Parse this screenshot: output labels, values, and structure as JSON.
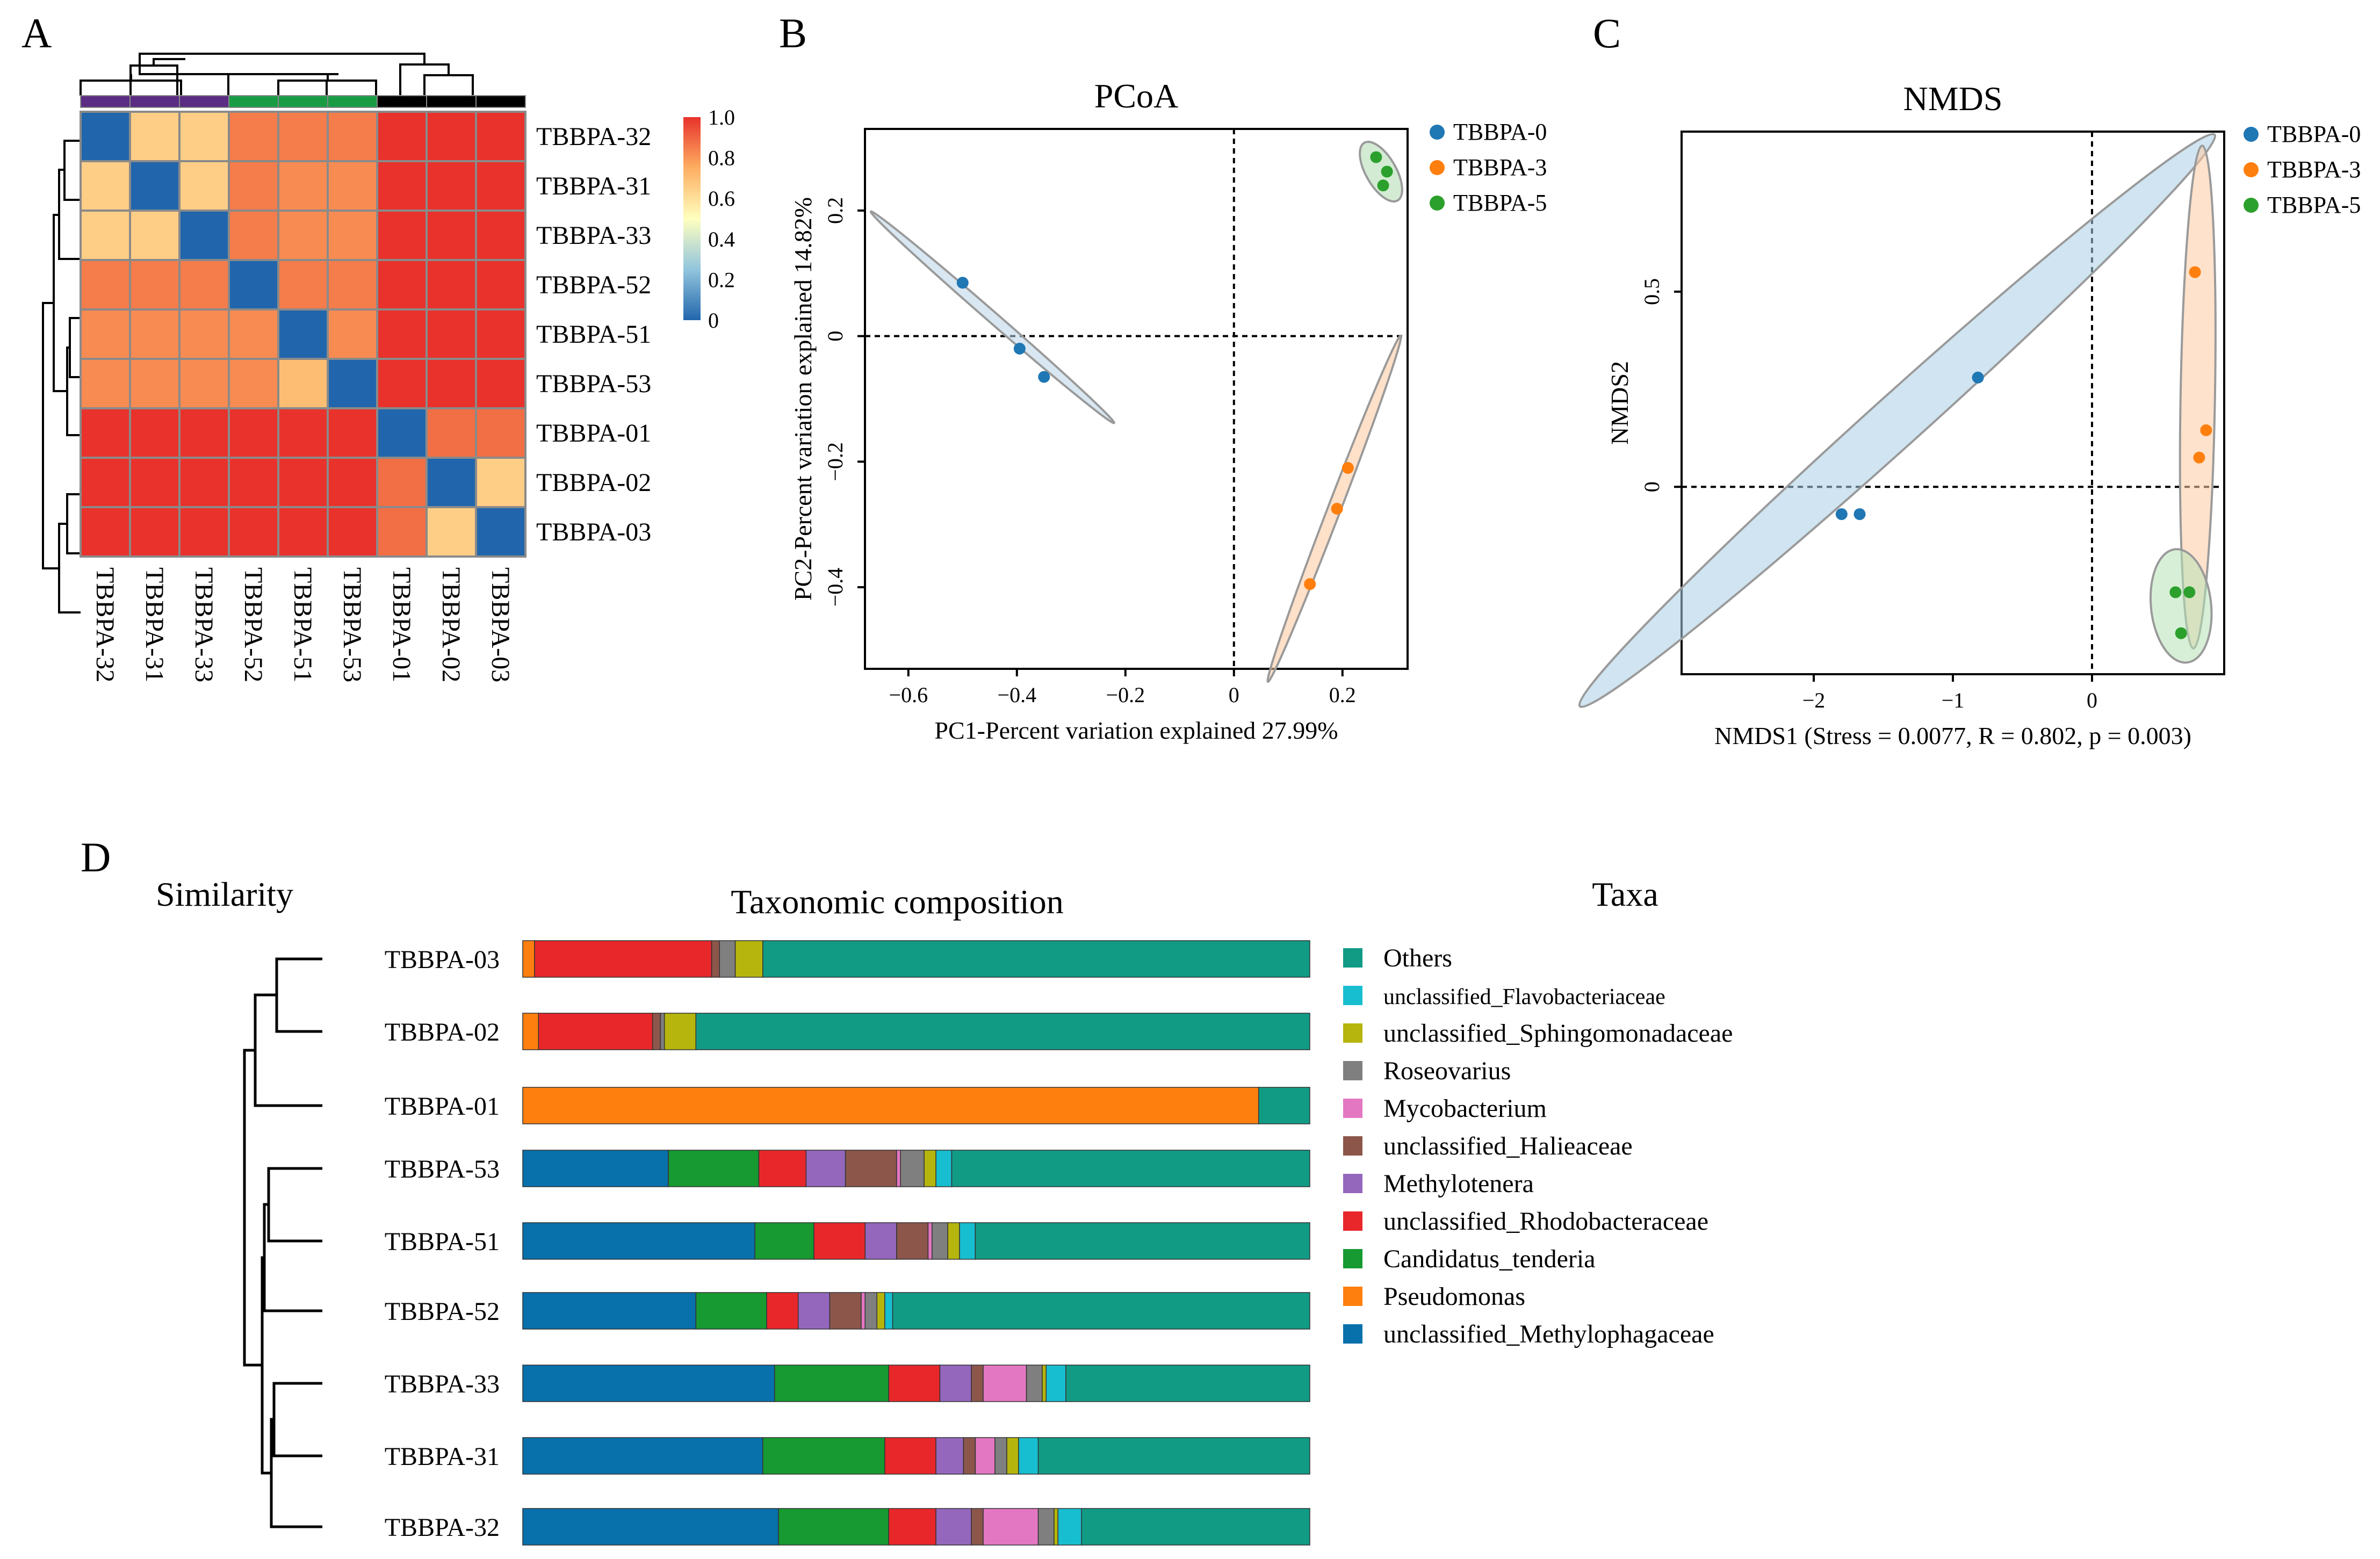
{
  "colors": {
    "tbbpa0": "#1f77b4",
    "tbbpa3": "#ff7f0e",
    "tbbpa5": "#2ca02c",
    "heat_low": "#2166ac",
    "heat_mid": "#ffffbf",
    "heat_high": "#e8322b",
    "group_purple": "#5b2c83",
    "group_green": "#1a9c45",
    "group_black": "#000000"
  },
  "panels": {
    "A": {
      "letter": "A"
    },
    "B": {
      "letter": "B"
    },
    "C": {
      "letter": "C"
    },
    "D": {
      "letter": "D"
    }
  },
  "chart_data": [
    {
      "id": "A",
      "type": "heatmap",
      "title": "",
      "samples": [
        "TBBPA-32",
        "TBBPA-31",
        "TBBPA-33",
        "TBBPA-52",
        "TBBPA-51",
        "TBBPA-53",
        "TBBPA-01",
        "TBBPA-02",
        "TBBPA-03"
      ],
      "group_colors": [
        "group_purple",
        "group_purple",
        "group_purple",
        "group_green",
        "group_green",
        "group_green",
        "group_black",
        "group_black",
        "group_black"
      ],
      "matrix": [
        [
          0.0,
          0.65,
          0.65,
          0.85,
          0.85,
          0.85,
          1.0,
          1.0,
          1.0
        ],
        [
          0.65,
          0.0,
          0.65,
          0.85,
          0.82,
          0.82,
          1.0,
          1.0,
          1.0
        ],
        [
          0.65,
          0.65,
          0.0,
          0.85,
          0.82,
          0.82,
          1.0,
          1.0,
          1.0
        ],
        [
          0.85,
          0.85,
          0.85,
          0.0,
          0.85,
          0.85,
          1.0,
          1.0,
          1.0
        ],
        [
          0.82,
          0.82,
          0.82,
          0.82,
          0.0,
          0.82,
          1.0,
          1.0,
          1.0
        ],
        [
          0.82,
          0.82,
          0.82,
          0.82,
          0.7,
          0.0,
          1.0,
          1.0,
          1.0
        ],
        [
          1.0,
          1.0,
          1.0,
          1.0,
          1.0,
          1.0,
          0.0,
          0.88,
          0.88
        ],
        [
          1.0,
          1.0,
          1.0,
          1.0,
          1.0,
          1.0,
          0.88,
          0.0,
          0.65
        ],
        [
          1.0,
          1.0,
          1.0,
          1.0,
          1.0,
          1.0,
          0.88,
          0.65,
          0.0
        ]
      ],
      "colorbar": {
        "ticks": [
          "1.0",
          "0.8",
          "0.6",
          "0.4",
          "0.2",
          "0"
        ],
        "range": [
          0,
          1
        ]
      }
    },
    {
      "id": "B",
      "type": "scatter",
      "title": "PCoA",
      "xlabel": "PC1-Percent variation explained 27.99%",
      "ylabel": "PC2-Percent variation explained 14.82%",
      "xlim": [
        -0.68,
        0.32
      ],
      "ylim": [
        -0.53,
        0.33
      ],
      "xticks": [
        -0.6,
        -0.4,
        -0.2,
        0,
        0.2
      ],
      "xtick_labels": [
        "−0.6",
        "−0.4",
        "−0.2",
        "0",
        "0.2"
      ],
      "yticks": [
        -0.4,
        -0.2,
        0,
        0.2
      ],
      "ytick_labels": [
        "−0.4",
        "−0.2",
        "0",
        "0.2"
      ],
      "legend_position": "outside-top-right",
      "series": [
        {
          "name": "TBBPA-0",
          "color_key": "tbbpa0",
          "x": [
            -0.5,
            -0.395,
            -0.35
          ],
          "y": [
            0.085,
            -0.02,
            -0.065
          ]
        },
        {
          "name": "TBBPA-3",
          "color_key": "tbbpa3",
          "x": [
            0.21,
            0.19,
            0.14
          ],
          "y": [
            -0.21,
            -0.275,
            -0.395
          ]
        },
        {
          "name": "TBBPA-5",
          "color_key": "tbbpa5",
          "x": [
            0.262,
            0.282,
            0.275
          ],
          "y": [
            0.285,
            0.262,
            0.24
          ]
        }
      ]
    },
    {
      "id": "C",
      "type": "scatter",
      "title": "NMDS",
      "xlabel": "NMDS1 (Stress = 0.0077, R = 0.802, p = 0.003)",
      "ylabel": "NMDS2",
      "xlim": [
        -2.95,
        0.95
      ],
      "ylim": [
        -0.48,
        0.91
      ],
      "xticks": [
        -2,
        -1,
        0
      ],
      "xtick_labels": [
        "−2",
        "−1",
        "0"
      ],
      "yticks": [
        0,
        0.5
      ],
      "ytick_labels": [
        "0",
        "0.5"
      ],
      "legend_position": "outside-top-right",
      "series": [
        {
          "name": "TBBPA-0",
          "color_key": "tbbpa0",
          "x": [
            -0.82,
            -1.8,
            -1.67
          ],
          "y": [
            0.28,
            -0.07,
            -0.07
          ]
        },
        {
          "name": "TBBPA-3",
          "color_key": "tbbpa3",
          "x": [
            0.74,
            0.82,
            0.77
          ],
          "y": [
            0.55,
            0.145,
            0.075
          ]
        },
        {
          "name": "TBBPA-5",
          "color_key": "tbbpa5",
          "x": [
            0.6,
            0.7,
            0.64
          ],
          "y": [
            -0.27,
            -0.27,
            -0.375
          ]
        }
      ]
    },
    {
      "id": "D",
      "type": "bar",
      "orientation": "horizontal-stacked",
      "title": "Taxonomic composition",
      "dendrogram_title": "Similarity",
      "legend_title": "Taxa",
      "categories": [
        "TBBPA-03",
        "TBBPA-02",
        "TBBPA-01",
        "TBBPA-53",
        "TBBPA-51",
        "TBBPA-52",
        "TBBPA-33",
        "TBBPA-31",
        "TBBPA-32"
      ],
      "taxa_legend": [
        {
          "name": "Others",
          "color": "#119b85"
        },
        {
          "name": "unclassified_Flavobacteriaceae",
          "color": "#17becf"
        },
        {
          "name": "unclassified_Sphingomonadaceae",
          "color": "#b5b50d"
        },
        {
          "name": "Roseovarius",
          "color": "#7f7f7f"
        },
        {
          "name": "Mycobacterium",
          "color": "#e377c2"
        },
        {
          "name": "unclassified_Halieaceae",
          "color": "#8c564b"
        },
        {
          "name": "Methylotenera",
          "color": "#9467bd"
        },
        {
          "name": "unclassified_Rhodobacteraceae",
          "color": "#e8272a"
        },
        {
          "name": "Candidatus_tenderia",
          "color": "#169a31"
        },
        {
          "name": "Pseudomonas",
          "color": "#ff7f0e"
        },
        {
          "name": "unclassified_Methylophagaceae",
          "color": "#0870ab"
        }
      ],
      "stack_order": [
        "unclassified_Methylophagaceae",
        "Pseudomonas",
        "Candidatus_tenderia",
        "unclassified_Rhodobacteraceae",
        "Methylotenera",
        "unclassified_Halieaceae",
        "Mycobacterium",
        "Roseovarius",
        "unclassified_Sphingomonadaceae",
        "unclassified_Flavobacteriaceae",
        "Others"
      ],
      "series": [
        {
          "name": "unclassified_Methylophagaceae",
          "values": [
            0,
            0,
            0,
            18.5,
            29.5,
            22,
            32,
            30.5,
            32.5
          ]
        },
        {
          "name": "Pseudomonas",
          "values": [
            1.5,
            2,
            93.5,
            0,
            0,
            0,
            0,
            0,
            0
          ]
        },
        {
          "name": "Candidatus_tenderia",
          "values": [
            0,
            0,
            0,
            11.5,
            7.5,
            9,
            14.5,
            15.5,
            14
          ]
        },
        {
          "name": "unclassified_Rhodobacteraceae",
          "values": [
            22.5,
            14.5,
            0,
            6,
            6.5,
            4,
            6.5,
            6.5,
            6
          ]
        },
        {
          "name": "Methylotenera",
          "values": [
            0,
            0,
            0,
            5,
            4,
            4,
            4,
            3.5,
            4.5
          ]
        },
        {
          "name": "unclassified_Halieaceae",
          "values": [
            1,
            1,
            0,
            6.5,
            4,
            4,
            1.5,
            1.5,
            1.5
          ]
        },
        {
          "name": "Mycobacterium",
          "values": [
            0,
            0,
            0,
            0.5,
            0.5,
            0.5,
            5.5,
            2.5,
            7
          ]
        },
        {
          "name": "Roseovarius",
          "values": [
            2,
            0.5,
            0,
            3,
            2,
            1.5,
            2,
            1.5,
            2
          ]
        },
        {
          "name": "unclassified_Sphingomonadaceae",
          "values": [
            3.5,
            4,
            0,
            1.5,
            1.5,
            1,
            0.5,
            1.5,
            0.5
          ]
        },
        {
          "name": "unclassified_Flavobacteriaceae",
          "values": [
            0,
            0,
            0,
            2,
            2,
            1,
            2.5,
            2.5,
            3
          ]
        },
        {
          "name": "Others",
          "values": [
            69.5,
            78,
            6.5,
            45.5,
            42.5,
            53,
            31,
            34.5,
            29
          ]
        }
      ]
    }
  ]
}
